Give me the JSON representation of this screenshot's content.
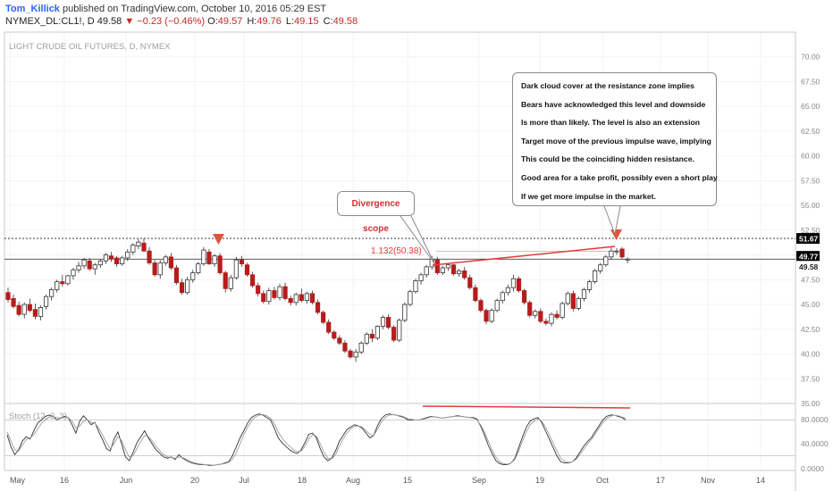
{
  "header": {
    "author": "Tom_Killick",
    "published": "published on TradingView.com, October 10, 2016 05:29 EST",
    "symbol": "NYMEX_DL:CL1!, D",
    "last": "49.58",
    "arrow": "▼",
    "change": "−0.23 (−0.46%)",
    "o_label": "O:",
    "o": "49.57",
    "h_label": "H:",
    "h": "49.76",
    "l_label": "L:",
    "l": "49.15",
    "c_label": "C:",
    "c": "49.58"
  },
  "annotations": {
    "divergence": "Divergence scope",
    "fib_label": "1.132(50.38)",
    "note_lines": [
      "Dark cloud cover at the resistance zone implies",
      "Bears have acknowledged this level and downside",
      "Is more than likely. The level is also an extension",
      "Target move of the previous impulse wave, implying",
      "This could be the coinciding hidden resistance.",
      "Good area for a take profit, possibly even a short play",
      "If we get more impulse in the market."
    ]
  },
  "colors": {
    "up": "#ffffff",
    "down": "#b71c1c",
    "outline": "#333333",
    "trend": "#e53935",
    "arrow": "#e0533d"
  },
  "chart_data": [
    {
      "type": "candlestick",
      "title": "LIGHT CRUDE OIL FUTURES, D, NYMEX",
      "ylim": [
        35,
        72.5
      ],
      "y_ticks": [
        "35.00",
        "37.50",
        "40.00",
        "42.50",
        "45.00",
        "47.50",
        "50.00",
        "52.50",
        "55.00",
        "57.50",
        "60.00",
        "62.50",
        "65.00",
        "67.50",
        "70.00"
      ],
      "x_ticks": [
        "May",
        "16",
        "Jun",
        "20",
        "Jul",
        "18",
        "Aug",
        "15",
        "Sep",
        "19",
        "Oct",
        "17",
        "Nov",
        "14"
      ],
      "price_labels": [
        "51.67",
        "49.77",
        "49.58"
      ],
      "horizontal_lines": [
        51.67,
        49.58
      ],
      "fib_level": 50.38,
      "ohlc": [
        [
          46.2,
          46.7,
          45.2,
          45.5
        ],
        [
          45.6,
          46.0,
          44.6,
          44.8
        ],
        [
          44.9,
          45.3,
          43.8,
          44.0
        ],
        [
          44.0,
          45.2,
          43.6,
          45.0
        ],
        [
          45.0,
          45.6,
          44.2,
          44.4
        ],
        [
          44.5,
          45.1,
          43.5,
          43.8
        ],
        [
          43.8,
          44.9,
          43.4,
          44.7
        ],
        [
          44.8,
          46.0,
          44.5,
          45.8
        ],
        [
          45.8,
          46.7,
          45.4,
          46.5
        ],
        [
          46.5,
          47.5,
          46.2,
          47.3
        ],
        [
          47.3,
          48.0,
          46.8,
          47.1
        ],
        [
          47.1,
          48.0,
          46.9,
          47.9
        ],
        [
          47.9,
          48.7,
          47.5,
          48.5
        ],
        [
          48.5,
          49.3,
          48.2,
          48.9
        ],
        [
          48.9,
          49.7,
          48.6,
          49.5
        ],
        [
          49.4,
          49.7,
          48.4,
          48.6
        ],
        [
          48.6,
          49.2,
          48.0,
          49.0
        ],
        [
          49.0,
          49.6,
          48.7,
          49.4
        ],
        [
          49.4,
          50.2,
          49.1,
          50.0
        ],
        [
          49.9,
          50.3,
          49.3,
          49.6
        ],
        [
          49.7,
          49.9,
          48.8,
          49.1
        ],
        [
          49.1,
          49.9,
          48.9,
          49.7
        ],
        [
          49.7,
          50.6,
          49.4,
          50.3
        ],
        [
          50.3,
          51.2,
          50.0,
          51.0
        ],
        [
          50.9,
          51.6,
          50.6,
          51.3
        ],
        [
          51.2,
          51.7,
          50.3,
          50.4
        ],
        [
          50.4,
          50.8,
          49.0,
          49.2
        ],
        [
          49.2,
          49.5,
          47.8,
          48.0
        ],
        [
          48.0,
          49.5,
          47.6,
          49.2
        ],
        [
          49.2,
          50.0,
          48.9,
          49.8
        ],
        [
          49.8,
          50.2,
          48.5,
          48.7
        ],
        [
          48.7,
          49.0,
          47.0,
          47.2
        ],
        [
          47.2,
          47.6,
          46.0,
          46.2
        ],
        [
          46.2,
          47.8,
          46.0,
          47.5
        ],
        [
          47.5,
          48.5,
          47.2,
          48.2
        ],
        [
          48.2,
          49.3,
          48.0,
          49.1
        ],
        [
          49.1,
          50.8,
          48.9,
          50.5
        ],
        [
          50.3,
          50.6,
          49.0,
          49.1
        ],
        [
          49.1,
          50.1,
          48.8,
          49.9
        ],
        [
          49.9,
          50.2,
          48.0,
          48.2
        ],
        [
          48.2,
          48.4,
          46.2,
          46.6
        ],
        [
          46.6,
          48.0,
          46.3,
          47.7
        ],
        [
          47.7,
          49.8,
          47.5,
          49.5
        ],
        [
          49.5,
          49.9,
          48.8,
          49.1
        ],
        [
          49.0,
          49.2,
          47.8,
          48.0
        ],
        [
          48.0,
          48.3,
          46.7,
          46.9
        ],
        [
          46.9,
          47.2,
          45.8,
          46.1
        ],
        [
          46.1,
          46.4,
          45.1,
          45.3
        ],
        [
          45.3,
          46.7,
          45.0,
          46.4
        ],
        [
          46.4,
          46.8,
          45.5,
          45.7
        ],
        [
          45.7,
          47.1,
          45.4,
          46.8
        ],
        [
          46.8,
          47.2,
          45.4,
          45.6
        ],
        [
          45.6,
          45.9,
          44.9,
          45.2
        ],
        [
          45.2,
          46.2,
          44.9,
          46.0
        ],
        [
          46.0,
          46.6,
          45.2,
          45.4
        ],
        [
          45.4,
          46.3,
          45.1,
          46.1
        ],
        [
          46.1,
          46.4,
          45.0,
          45.2
        ],
        [
          45.2,
          45.5,
          44.0,
          44.2
        ],
        [
          44.2,
          44.4,
          43.0,
          43.2
        ],
        [
          43.2,
          43.5,
          42.0,
          42.2
        ],
        [
          42.2,
          42.4,
          41.4,
          41.6
        ],
        [
          41.6,
          41.9,
          40.9,
          41.1
        ],
        [
          41.1,
          41.4,
          40.1,
          40.3
        ],
        [
          40.3,
          40.5,
          39.5,
          39.7
        ],
        [
          39.7,
          40.5,
          39.2,
          40.2
        ],
        [
          40.2,
          41.3,
          40.0,
          41.1
        ],
        [
          41.1,
          42.2,
          40.9,
          42.0
        ],
        [
          42.0,
          42.5,
          41.2,
          41.6
        ],
        [
          41.6,
          42.9,
          41.4,
          42.8
        ],
        [
          42.8,
          43.9,
          42.5,
          43.7
        ],
        [
          43.7,
          44.0,
          42.5,
          42.7
        ],
        [
          42.7,
          42.9,
          41.2,
          41.4
        ],
        [
          41.4,
          43.6,
          41.2,
          43.4
        ],
        [
          43.4,
          45.2,
          43.2,
          45.0
        ],
        [
          45.0,
          46.5,
          44.8,
          46.3
        ],
        [
          46.3,
          47.6,
          46.1,
          47.4
        ],
        [
          47.4,
          48.2,
          47.0,
          48.0
        ],
        [
          48.0,
          49.0,
          47.7,
          48.8
        ],
        [
          48.8,
          49.9,
          48.5,
          49.6
        ],
        [
          49.5,
          49.8,
          48.0,
          48.2
        ],
        [
          48.2,
          48.9,
          48.0,
          48.7
        ],
        [
          48.7,
          49.2,
          48.4,
          49.0
        ],
        [
          49.0,
          49.1,
          47.9,
          48.1
        ],
        [
          48.1,
          48.6,
          47.8,
          48.4
        ],
        [
          48.4,
          48.8,
          47.5,
          47.7
        ],
        [
          47.7,
          48.0,
          46.5,
          46.7
        ],
        [
          46.7,
          47.0,
          45.2,
          45.4
        ],
        [
          45.4,
          45.6,
          44.2,
          44.4
        ],
        [
          44.4,
          44.6,
          43.0,
          43.3
        ],
        [
          43.3,
          44.6,
          43.1,
          44.4
        ],
        [
          44.4,
          45.6,
          44.2,
          45.4
        ],
        [
          45.4,
          46.4,
          45.1,
          46.2
        ],
        [
          46.2,
          47.0,
          45.9,
          46.7
        ],
        [
          46.7,
          48.0,
          46.3,
          47.6
        ],
        [
          47.6,
          47.8,
          46.2,
          46.4
        ],
        [
          46.4,
          46.6,
          45.0,
          45.2
        ],
        [
          45.2,
          45.4,
          43.7,
          43.9
        ],
        [
          43.9,
          44.5,
          43.6,
          44.3
        ],
        [
          44.3,
          44.6,
          43.1,
          43.3
        ],
        [
          43.3,
          43.6,
          42.9,
          43.1
        ],
        [
          43.1,
          44.2,
          42.8,
          44.0
        ],
        [
          44.0,
          44.4,
          43.5,
          43.7
        ],
        [
          43.7,
          45.3,
          43.5,
          45.1
        ],
        [
          45.1,
          46.3,
          44.9,
          46.1
        ],
        [
          46.1,
          46.4,
          44.3,
          44.6
        ],
        [
          44.6,
          45.8,
          44.4,
          45.6
        ],
        [
          45.6,
          46.7,
          45.3,
          46.5
        ],
        [
          46.5,
          47.5,
          46.2,
          47.3
        ],
        [
          47.3,
          48.6,
          47.1,
          48.4
        ],
        [
          48.4,
          49.2,
          48.1,
          49.0
        ],
        [
          49.0,
          50.0,
          48.8,
          49.8
        ],
        [
          49.8,
          50.8,
          49.5,
          50.4
        ],
        [
          50.4,
          50.7,
          50.0,
          50.4
        ],
        [
          50.6,
          50.8,
          49.6,
          49.8
        ],
        [
          49.57,
          49.76,
          49.15,
          49.58
        ]
      ]
    },
    {
      "type": "line",
      "title": "Stoch (12, 3, 3)",
      "ylim": [
        0,
        100
      ],
      "y_ticks": [
        "80.0000",
        "40.0000",
        "0.0000"
      ],
      "bands": [
        80,
        20
      ],
      "series": [
        {
          "values": [
            55,
            35,
            22,
            30,
            45,
            52,
            48,
            62,
            75,
            80,
            86,
            88,
            86,
            80,
            83,
            86,
            84,
            72,
            58,
            78,
            87,
            80,
            72,
            76,
            60,
            47,
            32,
            28,
            48,
            60,
            40,
            18,
            12,
            26,
            42,
            52,
            62,
            50,
            40,
            30,
            24,
            18,
            16,
            18,
            14,
            22,
            16,
            12,
            9,
            7,
            6,
            5,
            5,
            4,
            4,
            5,
            6,
            8,
            10,
            20,
            35,
            50,
            62,
            75,
            84,
            88,
            90,
            88,
            84,
            80,
            66,
            50,
            42,
            36,
            30,
            26,
            24,
            30,
            42,
            56,
            58,
            50,
            32,
            18,
            12,
            16,
            28,
            44,
            54,
            64,
            68,
            72,
            70,
            66,
            58,
            50,
            54,
            70,
            82,
            88,
            90,
            89,
            88,
            86,
            84,
            80,
            80,
            80,
            80,
            82,
            84,
            86,
            85,
            84,
            83,
            84,
            85,
            86,
            87,
            86,
            85,
            84,
            84,
            82,
            70,
            55,
            38,
            24,
            12,
            7,
            5,
            5,
            8,
            16,
            34,
            52,
            68,
            78,
            82,
            84,
            76,
            62,
            48,
            34,
            20,
            10,
            8,
            8,
            10,
            16,
            26,
            36,
            44,
            50,
            60,
            70,
            80,
            86,
            88,
            88,
            86,
            84,
            80
          ]
        },
        {
          "values": [
            60,
            45,
            30,
            28,
            38,
            47,
            50,
            55,
            65,
            74,
            80,
            85,
            86,
            84,
            83,
            84,
            84,
            78,
            67,
            70,
            78,
            80,
            76,
            75,
            66,
            55,
            42,
            32,
            40,
            52,
            46,
            30,
            18,
            20,
            32,
            44,
            54,
            52,
            45,
            36,
            28,
            22,
            18,
            17,
            16,
            18,
            17,
            14,
            11,
            8,
            7,
            6,
            5,
            5,
            4,
            5,
            6,
            7,
            9,
            14,
            25,
            40,
            55,
            68,
            78,
            85,
            88,
            89,
            87,
            83,
            74,
            60,
            50,
            42,
            36,
            30,
            27,
            28,
            36,
            48,
            55,
            53,
            40,
            26,
            16,
            15,
            22,
            36,
            48,
            58,
            65,
            69,
            70,
            68,
            62,
            56,
            54,
            64,
            76,
            84,
            88,
            89,
            88,
            87,
            85,
            82,
            81,
            80,
            80,
            81,
            83,
            85,
            85,
            84,
            83,
            84,
            85,
            86,
            86,
            86,
            85,
            84,
            83,
            80,
            72,
            60,
            45,
            30,
            18,
            10,
            7,
            6,
            8,
            14,
            28,
            45,
            60,
            72,
            78,
            82,
            78,
            68,
            55,
            42,
            28,
            16,
            11,
            9,
            10,
            14,
            22,
            31,
            40,
            47,
            56,
            66,
            75,
            82,
            86,
            88,
            87,
            85,
            83
          ]
        }
      ]
    }
  ]
}
